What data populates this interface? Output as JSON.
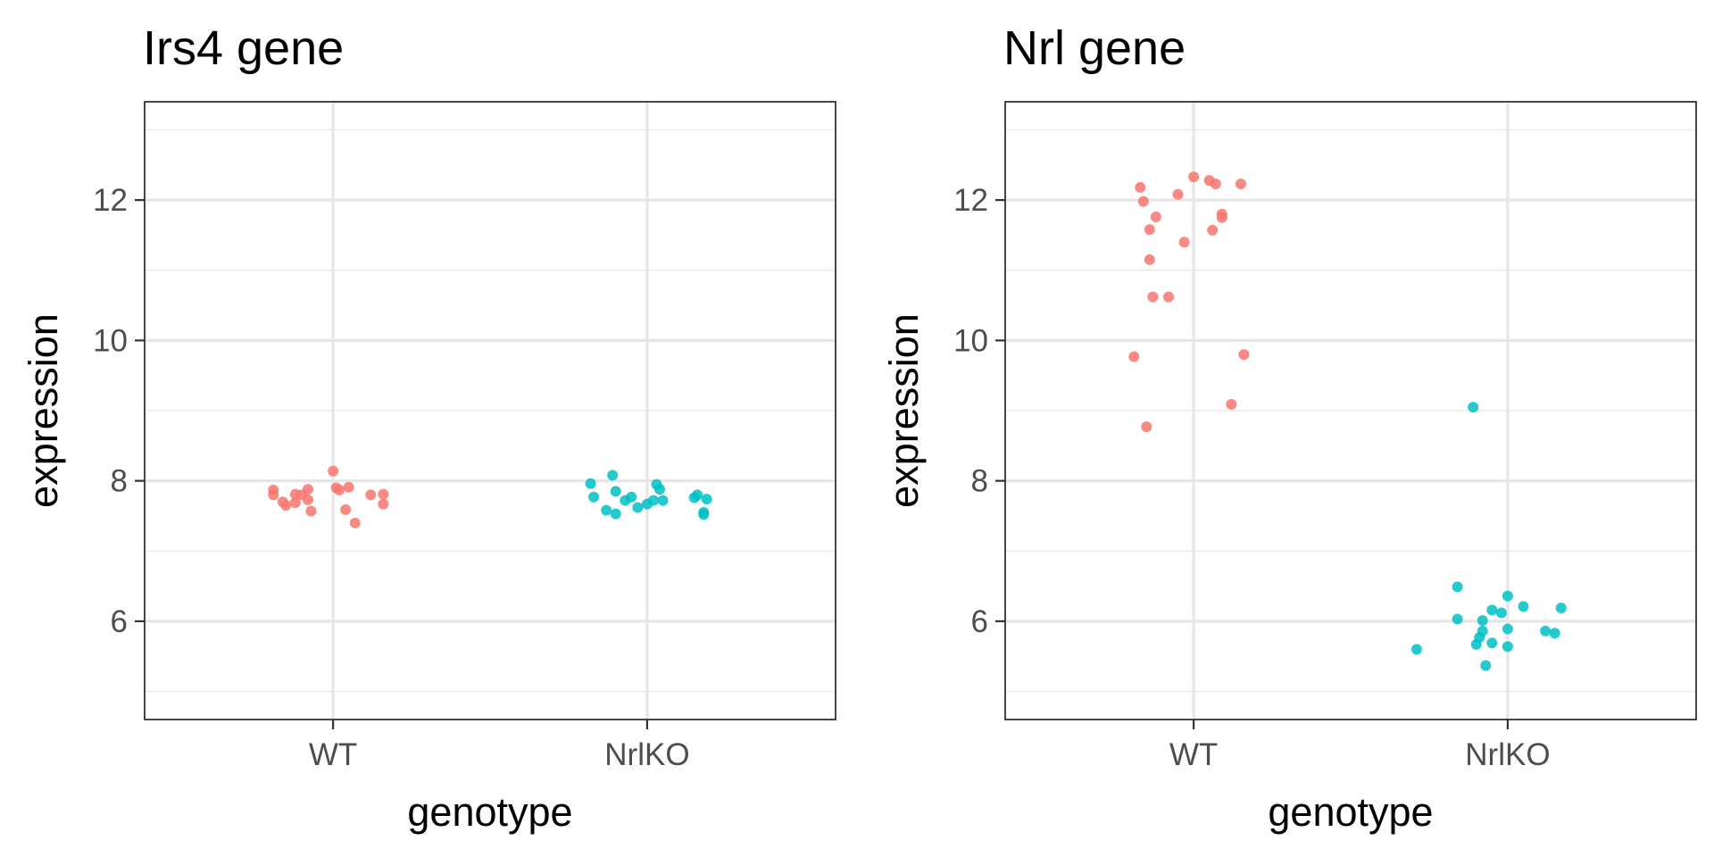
{
  "chart_data": [
    {
      "type": "scatter",
      "title": "Irs4 gene",
      "xlabel": "genotype",
      "ylabel": "expression",
      "categories": [
        "WT",
        "NrlKO"
      ],
      "ylim": [
        4.6,
        13.4
      ],
      "yticks": [
        6,
        8,
        10,
        12
      ],
      "grid": true,
      "colors": {
        "WT": "#F8766D",
        "NrlKO": "#00BFC4"
      },
      "series": [
        {
          "name": "WT",
          "points": [
            {
              "x": "WT",
              "jitter": -0.19,
              "y": 7.87
            },
            {
              "x": "WT",
              "jitter": -0.19,
              "y": 7.8
            },
            {
              "x": "WT",
              "jitter": -0.16,
              "y": 7.7
            },
            {
              "x": "WT",
              "jitter": -0.15,
              "y": 7.65
            },
            {
              "x": "WT",
              "jitter": -0.12,
              "y": 7.81
            },
            {
              "x": "WT",
              "jitter": -0.12,
              "y": 7.69
            },
            {
              "x": "WT",
              "jitter": -0.1,
              "y": 7.8
            },
            {
              "x": "WT",
              "jitter": -0.08,
              "y": 7.73
            },
            {
              "x": "WT",
              "jitter": -0.08,
              "y": 7.88
            },
            {
              "x": "WT",
              "jitter": -0.07,
              "y": 7.57
            },
            {
              "x": "WT",
              "jitter": 0.0,
              "y": 8.14
            },
            {
              "x": "WT",
              "jitter": 0.01,
              "y": 7.9
            },
            {
              "x": "WT",
              "jitter": 0.02,
              "y": 7.87
            },
            {
              "x": "WT",
              "jitter": 0.05,
              "y": 7.91
            },
            {
              "x": "WT",
              "jitter": 0.04,
              "y": 7.59
            },
            {
              "x": "WT",
              "jitter": 0.07,
              "y": 7.4
            },
            {
              "x": "WT",
              "jitter": 0.12,
              "y": 7.8
            },
            {
              "x": "WT",
              "jitter": 0.16,
              "y": 7.81
            },
            {
              "x": "WT",
              "jitter": 0.16,
              "y": 7.67
            }
          ]
        },
        {
          "name": "NrlKO",
          "points": [
            {
              "x": "NrlKO",
              "jitter": -0.18,
              "y": 7.96
            },
            {
              "x": "NrlKO",
              "jitter": -0.17,
              "y": 7.77
            },
            {
              "x": "NrlKO",
              "jitter": -0.13,
              "y": 7.58
            },
            {
              "x": "NrlKO",
              "jitter": -0.11,
              "y": 8.08
            },
            {
              "x": "NrlKO",
              "jitter": -0.1,
              "y": 7.85
            },
            {
              "x": "NrlKO",
              "jitter": -0.1,
              "y": 7.53
            },
            {
              "x": "NrlKO",
              "jitter": -0.07,
              "y": 7.72
            },
            {
              "x": "NrlKO",
              "jitter": -0.05,
              "y": 7.77
            },
            {
              "x": "NrlKO",
              "jitter": -0.03,
              "y": 7.62
            },
            {
              "x": "NrlKO",
              "jitter": 0.0,
              "y": 7.67
            },
            {
              "x": "NrlKO",
              "jitter": 0.02,
              "y": 7.72
            },
            {
              "x": "NrlKO",
              "jitter": 0.03,
              "y": 7.95
            },
            {
              "x": "NrlKO",
              "jitter": 0.04,
              "y": 7.88
            },
            {
              "x": "NrlKO",
              "jitter": 0.05,
              "y": 7.72
            },
            {
              "x": "NrlKO",
              "jitter": 0.15,
              "y": 7.76
            },
            {
              "x": "NrlKO",
              "jitter": 0.16,
              "y": 7.8
            },
            {
              "x": "NrlKO",
              "jitter": 0.19,
              "y": 7.74
            },
            {
              "x": "NrlKO",
              "jitter": 0.18,
              "y": 7.55
            },
            {
              "x": "NrlKO",
              "jitter": 0.18,
              "y": 7.52
            }
          ]
        }
      ]
    },
    {
      "type": "scatter",
      "title": "Nrl gene",
      "xlabel": "genotype",
      "ylabel": "expression",
      "categories": [
        "WT",
        "NrlKO"
      ],
      "ylim": [
        4.6,
        13.4
      ],
      "yticks": [
        6,
        8,
        10,
        12
      ],
      "grid": true,
      "colors": {
        "WT": "#F8766D",
        "NrlKO": "#00BFC4"
      },
      "series": [
        {
          "name": "WT",
          "points": [
            {
              "x": "WT",
              "jitter": -0.19,
              "y": 9.77
            },
            {
              "x": "WT",
              "jitter": -0.17,
              "y": 12.18
            },
            {
              "x": "WT",
              "jitter": -0.16,
              "y": 11.98
            },
            {
              "x": "WT",
              "jitter": -0.15,
              "y": 8.77
            },
            {
              "x": "WT",
              "jitter": -0.14,
              "y": 11.58
            },
            {
              "x": "WT",
              "jitter": -0.14,
              "y": 11.15
            },
            {
              "x": "WT",
              "jitter": -0.13,
              "y": 10.62
            },
            {
              "x": "WT",
              "jitter": -0.12,
              "y": 11.76
            },
            {
              "x": "WT",
              "jitter": -0.08,
              "y": 10.62
            },
            {
              "x": "WT",
              "jitter": -0.05,
              "y": 12.08
            },
            {
              "x": "WT",
              "jitter": -0.03,
              "y": 11.4
            },
            {
              "x": "WT",
              "jitter": 0.0,
              "y": 12.33
            },
            {
              "x": "WT",
              "jitter": 0.05,
              "y": 12.28
            },
            {
              "x": "WT",
              "jitter": 0.07,
              "y": 12.23
            },
            {
              "x": "WT",
              "jitter": 0.06,
              "y": 11.57
            },
            {
              "x": "WT",
              "jitter": 0.09,
              "y": 11.8
            },
            {
              "x": "WT",
              "jitter": 0.09,
              "y": 11.75
            },
            {
              "x": "WT",
              "jitter": 0.12,
              "y": 9.09
            },
            {
              "x": "WT",
              "jitter": 0.15,
              "y": 12.23
            },
            {
              "x": "WT",
              "jitter": 0.16,
              "y": 9.8
            }
          ]
        },
        {
          "name": "NrlKO",
          "points": [
            {
              "x": "NrlKO",
              "jitter": -0.29,
              "y": 5.6
            },
            {
              "x": "NrlKO",
              "jitter": -0.16,
              "y": 6.03
            },
            {
              "x": "NrlKO",
              "jitter": -0.16,
              "y": 6.49
            },
            {
              "x": "NrlKO",
              "jitter": -0.11,
              "y": 9.05
            },
            {
              "x": "NrlKO",
              "jitter": -0.1,
              "y": 5.67
            },
            {
              "x": "NrlKO",
              "jitter": -0.09,
              "y": 5.77
            },
            {
              "x": "NrlKO",
              "jitter": -0.08,
              "y": 6.01
            },
            {
              "x": "NrlKO",
              "jitter": -0.08,
              "y": 5.86
            },
            {
              "x": "NrlKO",
              "jitter": -0.07,
              "y": 5.37
            },
            {
              "x": "NrlKO",
              "jitter": -0.05,
              "y": 5.69
            },
            {
              "x": "NrlKO",
              "jitter": -0.05,
              "y": 6.16
            },
            {
              "x": "NrlKO",
              "jitter": -0.02,
              "y": 6.12
            },
            {
              "x": "NrlKO",
              "jitter": 0.0,
              "y": 6.36
            },
            {
              "x": "NrlKO",
              "jitter": 0.0,
              "y": 5.89
            },
            {
              "x": "NrlKO",
              "jitter": 0.0,
              "y": 5.64
            },
            {
              "x": "NrlKO",
              "jitter": 0.05,
              "y": 6.21
            },
            {
              "x": "NrlKO",
              "jitter": 0.12,
              "y": 5.86
            },
            {
              "x": "NrlKO",
              "jitter": 0.15,
              "y": 5.83
            },
            {
              "x": "NrlKO",
              "jitter": 0.17,
              "y": 6.19
            }
          ]
        }
      ]
    }
  ]
}
